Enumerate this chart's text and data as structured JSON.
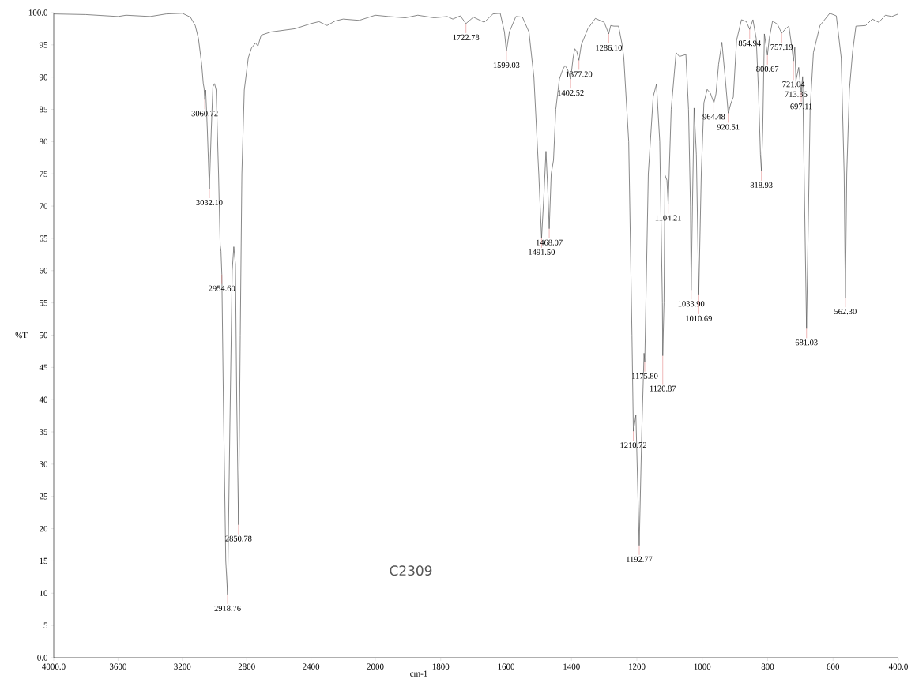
{
  "chart_data": [
    {
      "type": "line",
      "ylabel": "%T",
      "x": [
        4000,
        3800,
        3600,
        3550,
        3400,
        3300,
        3200,
        3150,
        3120,
        3100,
        3080,
        3070,
        3065,
        3060.72,
        3055,
        3045,
        3032.1,
        3020,
        3010,
        3000,
        2990,
        2975,
        2965,
        2960,
        2954.6,
        2945,
        2930,
        2918.76,
        2905,
        2890,
        2880,
        2870,
        2862,
        2850.78,
        2840,
        2830,
        2815,
        2790,
        2770,
        2745,
        2730,
        2710,
        2650,
        2500,
        2400,
        2350,
        2300,
        2250,
        2200,
        2100,
        2050,
        2000
      ],
      "series": [
        {
          "color": "#555555",
          "values": [
            99.8,
            99.7,
            99.4,
            99.6,
            99.4,
            99.8,
            99.9,
            99.3,
            98.0,
            96.0,
            92,
            89,
            88.3,
            86.5,
            88,
            82,
            72.7,
            82,
            88.5,
            89,
            88,
            75,
            64,
            63,
            59.4,
            40,
            15,
            9.8,
            35,
            60,
            63.7,
            61,
            40,
            20.6,
            50,
            75,
            88,
            93,
            94.5,
            95.3,
            94.8,
            96.5,
            97,
            97.5,
            98.3,
            98.6,
            98,
            98.7,
            99.0,
            98.8,
            99.2,
            99.6
          ]
        }
      ],
      "xlim": [
        4000,
        2000
      ],
      "ylim": [
        0,
        100
      ],
      "xticks": [
        {
          "value": 4000,
          "label": "4000.0"
        },
        3600,
        3200,
        2800,
        2400
      ],
      "yticks": [
        {
          "value": 0,
          "label": "0.0"
        },
        5,
        10,
        15,
        20,
        25,
        30,
        35,
        40,
        45,
        50,
        55,
        60,
        65,
        70,
        75,
        80,
        85,
        90,
        95,
        {
          "value": 100,
          "label": "100.0"
        }
      ],
      "annotations": [
        {
          "text": "3060.72",
          "x": 3060.72,
          "y": 86.5
        },
        {
          "text": "3032.10",
          "x": 3032.1,
          "y": 72.7
        },
        {
          "text": "2954.60",
          "x": 2954.6,
          "y": 59.4
        },
        {
          "text": "2918.76",
          "x": 2918.76,
          "y": 9.8
        },
        {
          "text": "2850.78",
          "x": 2850.78,
          "y": 20.6
        }
      ]
    },
    {
      "type": "line",
      "xlabel": "cm-1",
      "tick_labels": "x",
      "x": [
        2000,
        1960,
        1908,
        1870,
        1820,
        1780,
        1763,
        1740,
        1722.78,
        1700,
        1667,
        1640,
        1618,
        1605,
        1599.03,
        1590,
        1570,
        1550,
        1530,
        1515,
        1500,
        1491.5,
        1484,
        1478,
        1472,
        1468.07,
        1462,
        1455,
        1448,
        1437,
        1428,
        1420,
        1412,
        1402.52,
        1395,
        1390,
        1384,
        1377.2,
        1370,
        1350,
        1327,
        1300,
        1286.1,
        1280,
        1270,
        1256,
        1245,
        1240,
        1225,
        1215,
        1210.72,
        1203,
        1192.77,
        1185,
        1178,
        1175.8,
        1165,
        1150,
        1140,
        1130,
        1122,
        1120.87,
        1117,
        1114,
        1108,
        1104.21,
        1095,
        1080,
        1070,
        1050,
        1042,
        1036,
        1033.9,
        1030,
        1025,
        1018,
        1010.69,
        1003,
        995,
        985,
        975,
        964.48,
        958,
        950,
        940,
        930,
        920.51,
        912,
        905,
        895,
        880,
        865,
        854.94,
        845,
        835,
        828,
        822,
        818.93,
        815,
        810,
        805,
        800.67,
        795,
        785,
        770,
        757.19,
        745,
        735,
        727,
        721.04,
        717,
        713.36,
        705,
        697.11,
        693,
        681.03,
        670,
        660,
        640,
        610,
        590,
        575,
        566,
        562.3,
        558,
        550,
        540,
        530,
        500,
        480,
        460,
        440,
        420,
        400
      ],
      "series": [
        {
          "color": "#555555",
          "values": [
            99.6,
            99.4,
            99.2,
            99.6,
            99.2,
            99.4,
            99.0,
            99.5,
            98.3,
            99.3,
            98.5,
            99.8,
            99.9,
            97,
            94.0,
            97,
            99.4,
            99.3,
            97,
            90,
            75,
            65.0,
            72,
            78.5,
            72,
            66.5,
            75,
            77.1,
            85,
            89.7,
            91.0,
            91.8,
            91.2,
            89.7,
            93,
            94.4,
            94,
            92.6,
            95,
            97.5,
            99.1,
            98.5,
            96.7,
            98,
            97.9,
            97.9,
            95,
            93,
            80,
            50,
            35.1,
            37.6,
            17.4,
            35,
            47.2,
            45.8,
            75,
            87,
            88.9,
            80,
            55,
            46.8,
            55,
            74.8,
            74,
            70.3,
            85,
            93.8,
            93.2,
            93.5,
            85,
            70,
            57.0,
            70,
            85.2,
            78,
            56.2,
            75,
            86,
            88.1,
            87.5,
            86,
            87.4,
            92,
            95.4,
            90,
            84.4,
            86,
            86.9,
            95.7,
            98.9,
            98.6,
            97.4,
            98.9,
            96,
            88,
            78,
            75.4,
            82,
            96.7,
            95,
            93.4,
            96,
            98.7,
            98.2,
            96.8,
            97.5,
            97.9,
            95,
            92.5,
            94.6,
            89.5,
            91.5,
            87.6,
            90.1,
            51,
            85,
            93.8,
            98,
            99.9,
            99.5,
            93,
            75,
            55.8,
            75,
            88,
            94,
            97.9,
            98,
            99,
            98.5,
            99.6,
            99.4,
            99.8
          ]
        }
      ],
      "xlim": [
        2000,
        400
      ],
      "ylim": [
        0,
        100
      ],
      "xticks": [
        2000,
        1800,
        1600,
        1400,
        1200,
        1000,
        800,
        600,
        {
          "value": 400,
          "label": "400.0"
        }
      ],
      "annotations": [
        {
          "text": "1722.78",
          "x": 1722.78,
          "y": 98.3
        },
        {
          "text": "1599.03",
          "x": 1599.03,
          "y": 94.0
        },
        {
          "text": "1491.50",
          "x": 1491.5,
          "y": 65.0
        },
        {
          "text": "1468.07",
          "x": 1468.07,
          "y": 66.5
        },
        {
          "text": "1402.52",
          "x": 1402.52,
          "y": 89.7
        },
        {
          "text": "1377.20",
          "x": 1377.2,
          "y": 92.6
        },
        {
          "text": "1286.10",
          "x": 1286.1,
          "y": 96.7
        },
        {
          "text": "1210.72",
          "x": 1210.72,
          "y": 35.1
        },
        {
          "text": "1192.77",
          "x": 1192.77,
          "y": 17.4
        },
        {
          "text": "1175.80",
          "x": 1175.8,
          "y": 45.8
        },
        {
          "text": "1120.87",
          "x": 1120.87,
          "y": 46.8
        },
        {
          "text": "1104.21",
          "x": 1104.21,
          "y": 70.3
        },
        {
          "text": "1033.90",
          "x": 1033.9,
          "y": 57.0
        },
        {
          "text": "1010.69",
          "x": 1010.69,
          "y": 56.2
        },
        {
          "text": "964.48",
          "x": 964.48,
          "y": 86
        },
        {
          "text": "920.51",
          "x": 920.51,
          "y": 84.4
        },
        {
          "text": "854.94",
          "x": 854.94,
          "y": 97.4
        },
        {
          "text": "818.93",
          "x": 818.93,
          "y": 75.4
        },
        {
          "text": "800.67",
          "x": 800.67,
          "y": 93.4
        },
        {
          "text": "757.19",
          "x": 757.19,
          "y": 96.8
        },
        {
          "text": "721.04",
          "x": 721.04,
          "y": 92.5
        },
        {
          "text": "713.36",
          "x": 713.36,
          "y": 89.5
        },
        {
          "text": "697.11",
          "x": 697.11,
          "y": 87.6
        },
        {
          "text": "681.03",
          "x": 681.03,
          "y": 51
        },
        {
          "text": "562.30",
          "x": 562.3,
          "y": 55.8
        },
        "C2309"
      ]
    }
  ]
}
